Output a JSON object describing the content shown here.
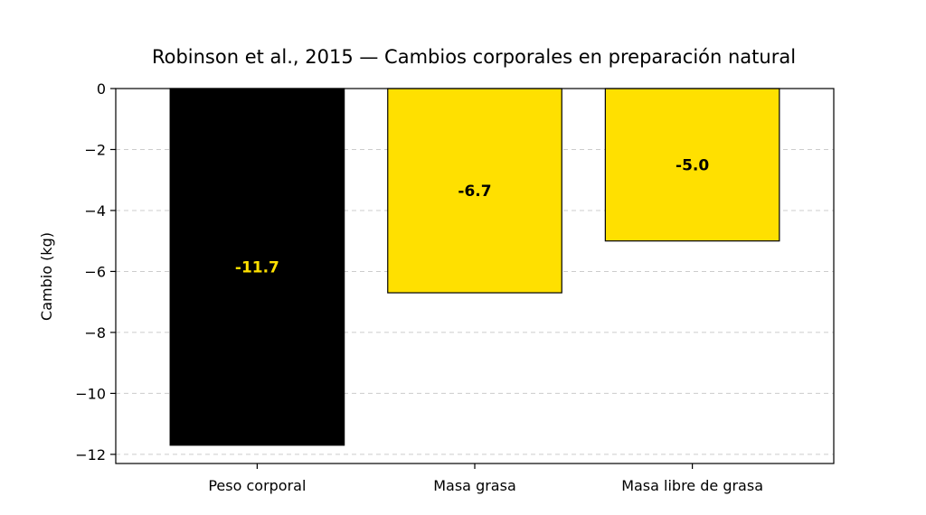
{
  "chart_data": {
    "type": "bar",
    "title": "Robinson et al., 2015 — Cambios corporales en preparación natural",
    "xlabel": "",
    "ylabel": "Cambio (kg)",
    "categories": [
      "Peso corporal",
      "Masa grasa",
      "Masa libre de grasa"
    ],
    "values": [
      -11.7,
      -6.7,
      -5.0
    ],
    "value_labels": [
      "-11.7",
      "-6.7",
      "-5.0"
    ],
    "ylim": [
      -12.3,
      0
    ],
    "yticks": [
      0,
      -2,
      -4,
      -6,
      -8,
      -10,
      -12
    ],
    "ytick_labels": [
      "0",
      "−2",
      "−4",
      "−6",
      "−8",
      "−10",
      "−12"
    ],
    "grid": "y-dashed",
    "legend": "none",
    "colors": {
      "bars": [
        "#000000",
        "#FFE000",
        "#FFE000"
      ],
      "labels": [
        "#FFE000",
        "#000000",
        "#000000"
      ],
      "edge": "#000000",
      "grid": "#cccccc"
    }
  }
}
